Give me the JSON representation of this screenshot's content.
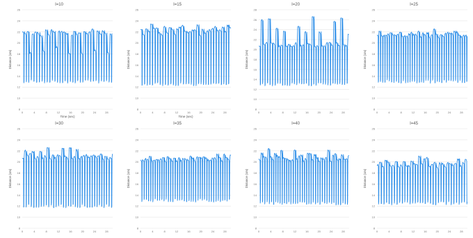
{
  "chart_data": [
    {
      "type": "line",
      "title": "I=10",
      "xlabel": "Time (sec)",
      "ylabel": "Distance (cm)",
      "xlim": [
        0,
        30
      ],
      "ylim": [
        8,
        26
      ],
      "xticks": [
        "0",
        "4",
        "8",
        "12",
        "16",
        "20",
        "24",
        "28"
      ],
      "yticks": [
        "8",
        "10",
        "12",
        "14",
        "16",
        "18",
        "20",
        "22",
        "24",
        "26"
      ],
      "signal": {
        "period_sec": 0.85,
        "low": 13,
        "high": 22,
        "high_alt": [
          21,
          22.3
        ],
        "high_alt2": [
          18,
          19.5
        ]
      }
    },
    {
      "type": "line",
      "title": "I=15",
      "xlabel": "Time (sec)",
      "ylabel": "Distance (cm)",
      "xlim": [
        0,
        30
      ],
      "ylim": [
        8,
        26
      ],
      "xticks": [
        "0",
        "4",
        "8",
        "12",
        "16",
        "20",
        "24",
        "28"
      ],
      "yticks": [
        "8",
        "10",
        "12",
        "14",
        "16",
        "18",
        "20",
        "22",
        "24",
        "26"
      ],
      "signal": {
        "period_sec": 0.85,
        "low": 12.5,
        "high": 22.5,
        "high_alt": [
          21.5,
          23.5
        ],
        "high_alt2": [
          21,
          22.5
        ]
      }
    },
    {
      "type": "line",
      "title": "I=20",
      "xlabel": "",
      "ylabel": "Distance (cm)",
      "xlim": [
        0,
        30
      ],
      "ylim": [
        8,
        28
      ],
      "xticks": [
        "0",
        "4",
        "8",
        "12",
        "16",
        "20",
        "24",
        "28"
      ],
      "yticks": [
        "8",
        "10",
        "12",
        "14",
        "16",
        "18",
        "20",
        "22",
        "24",
        "26",
        "28"
      ],
      "signal": {
        "period_sec": 0.8,
        "low": 13,
        "high": 21,
        "high_alt": [
          23,
          27
        ],
        "high_alt2": [
          20.5,
          21.5
        ]
      }
    },
    {
      "type": "line",
      "title": "I=25",
      "xlabel": "",
      "ylabel": "Distance (cm)",
      "xlim": [
        0,
        30
      ],
      "ylim": [
        8,
        26
      ],
      "xticks": [
        "0",
        "4",
        "8",
        "12",
        "16",
        "20",
        "24",
        "28"
      ],
      "yticks": [
        "8",
        "10",
        "12",
        "14",
        "16",
        "18",
        "20",
        "22",
        "24",
        "26"
      ],
      "signal": {
        "period_sec": 0.75,
        "low": 13,
        "high": 21.5,
        "high_alt": [
          21,
          22.5
        ],
        "high_alt2": [
          21,
          22
        ]
      }
    },
    {
      "type": "line",
      "title": "I=30",
      "xlabel": "",
      "ylabel": "Distance (cm)",
      "xlim": [
        0,
        30
      ],
      "ylim": [
        8,
        26
      ],
      "xticks": [
        "0",
        "4",
        "8",
        "12",
        "16",
        "20",
        "24",
        "28"
      ],
      "yticks": [
        "8",
        "10",
        "12",
        "14",
        "16",
        "18",
        "20",
        "22",
        "24",
        "26"
      ],
      "signal": {
        "period_sec": 0.8,
        "low": 12,
        "high": 21,
        "high_alt": [
          21,
          22.8
        ],
        "high_alt2": [
          20.5,
          21.5
        ]
      }
    },
    {
      "type": "line",
      "title": "I=35",
      "xlabel": "",
      "ylabel": "Distance (cm)",
      "xlim": [
        0,
        30
      ],
      "ylim": [
        8,
        26
      ],
      "xticks": [
        "0",
        "4",
        "8",
        "12",
        "16",
        "20",
        "24",
        "28"
      ],
      "yticks": [
        "8",
        "10",
        "12",
        "14",
        "16",
        "18",
        "20",
        "22",
        "24",
        "26"
      ],
      "signal": {
        "period_sec": 0.75,
        "low": 13,
        "high": 20.5,
        "high_alt": [
          20,
          21.5
        ],
        "high_alt2": [
          20,
          21
        ]
      }
    },
    {
      "type": "line",
      "title": "I=40",
      "xlabel": "",
      "ylabel": "Distance (cm)",
      "xlim": [
        0,
        30
      ],
      "ylim": [
        8,
        26
      ],
      "xticks": [
        "0",
        "4",
        "8",
        "12",
        "16",
        "20",
        "24",
        "28"
      ],
      "yticks": [
        "8",
        "10",
        "12",
        "14",
        "16",
        "18",
        "20",
        "22",
        "24",
        "26"
      ],
      "signal": {
        "period_sec": 0.75,
        "low": 12.5,
        "high": 20.5,
        "high_alt": [
          21,
          22.5
        ],
        "high_alt2": [
          20,
          21.5
        ]
      }
    },
    {
      "type": "line",
      "title": "I=45",
      "xlabel": "",
      "ylabel": "Distance (cm)",
      "xlim": [
        0,
        30
      ],
      "ylim": [
        8,
        26
      ],
      "xticks": [
        "0",
        "4",
        "8",
        "12",
        "16",
        "20",
        "24",
        "28"
      ],
      "yticks": [
        "8",
        "10",
        "12",
        "14",
        "16",
        "18",
        "20",
        "22",
        "24",
        "26"
      ],
      "signal": {
        "period_sec": 0.85,
        "low": 12.5,
        "high": 19.5,
        "high_alt": [
          19.5,
          21.5
        ],
        "high_alt2": [
          19,
          20.5
        ]
      }
    }
  ],
  "colors": {
    "series": "#2f8fe8",
    "grid": "#e6e6e6",
    "axis_text": "#777777"
  }
}
